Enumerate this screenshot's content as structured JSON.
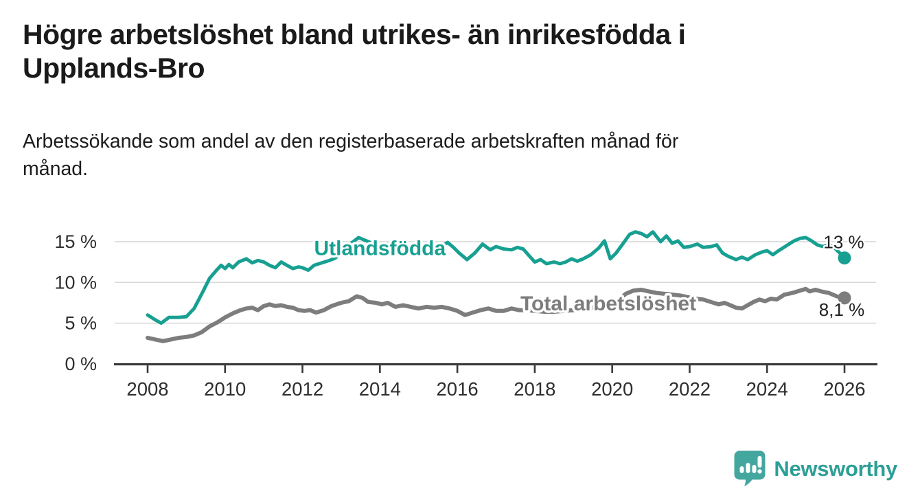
{
  "page": {
    "title": "Högre arbetslöshet bland utrikes- än inrikesfödda i Upplands-Bro",
    "subtitle": "Arbetssökande som andel av den registerbaserade arbetskraften månad för månad."
  },
  "branding": {
    "wordmark": "Newsworthy",
    "icon": "speech-bubble-bar-chart-icon",
    "icon_color": "#44a79f",
    "wordmark_color": "#2d9e96"
  },
  "chart_data": {
    "type": "line",
    "title": "",
    "xlabel": "",
    "ylabel": "",
    "x_unit": "decimal year (monthly samples)",
    "y_unit": "percent of registered labour force",
    "xlim": [
      2007.15,
      2026.85
    ],
    "ylim": [
      0,
      17
    ],
    "grid": "horizontal gridlines at 5, 10, 15",
    "legend_position": "inline labels on lines",
    "x_ticks": [
      2008,
      2010,
      2012,
      2014,
      2016,
      2018,
      2020,
      2022,
      2024,
      2026
    ],
    "x_tick_labels": [
      "2008",
      "2010",
      "2012",
      "2014",
      "2016",
      "2018",
      "2020",
      "2022",
      "2024",
      "2026"
    ],
    "y_ticks": [
      0,
      5,
      10,
      15
    ],
    "y_tick_labels": [
      "0 %",
      "5 %",
      "10 %",
      "15 %"
    ],
    "style": {
      "grid_color": "#d9d9d9",
      "axis_color": "#3a3a3a",
      "tick_text_color": "#2e2e2e",
      "end_label_color": "#222222",
      "background": "#ffffff"
    },
    "series": [
      {
        "id": "total-arbetsloshet",
        "name": "Total arbetslöshet",
        "color": "#7d7d7d",
        "width": 6,
        "end_label": "8,1 %",
        "end_value": 8.1,
        "label_pos": {
          "x": 2019.9,
          "y": 7.4
        },
        "points": [
          [
            2008.0,
            3.2
          ],
          [
            2008.2,
            3.0
          ],
          [
            2008.4,
            2.8
          ],
          [
            2008.6,
            3.0
          ],
          [
            2008.8,
            3.2
          ],
          [
            2009.0,
            3.3
          ],
          [
            2009.2,
            3.5
          ],
          [
            2009.4,
            3.9
          ],
          [
            2009.6,
            4.6
          ],
          [
            2009.8,
            5.1
          ],
          [
            2010.0,
            5.7
          ],
          [
            2010.2,
            6.2
          ],
          [
            2010.4,
            6.6
          ],
          [
            2010.55,
            6.8
          ],
          [
            2010.7,
            6.9
          ],
          [
            2010.85,
            6.6
          ],
          [
            2011.0,
            7.1
          ],
          [
            2011.15,
            7.3
          ],
          [
            2011.3,
            7.1
          ],
          [
            2011.45,
            7.2
          ],
          [
            2011.6,
            7.0
          ],
          [
            2011.75,
            6.9
          ],
          [
            2011.9,
            6.6
          ],
          [
            2012.05,
            6.5
          ],
          [
            2012.2,
            6.6
          ],
          [
            2012.35,
            6.3
          ],
          [
            2012.55,
            6.6
          ],
          [
            2012.75,
            7.1
          ],
          [
            2013.0,
            7.5
          ],
          [
            2013.2,
            7.7
          ],
          [
            2013.4,
            8.3
          ],
          [
            2013.55,
            8.1
          ],
          [
            2013.7,
            7.6
          ],
          [
            2013.9,
            7.5
          ],
          [
            2014.05,
            7.3
          ],
          [
            2014.2,
            7.5
          ],
          [
            2014.4,
            7.0
          ],
          [
            2014.6,
            7.2
          ],
          [
            2014.8,
            7.0
          ],
          [
            2015.0,
            6.8
          ],
          [
            2015.2,
            7.0
          ],
          [
            2015.4,
            6.9
          ],
          [
            2015.6,
            7.0
          ],
          [
            2015.8,
            6.8
          ],
          [
            2016.0,
            6.5
          ],
          [
            2016.2,
            6.0
          ],
          [
            2016.4,
            6.3
          ],
          [
            2016.6,
            6.6
          ],
          [
            2016.8,
            6.8
          ],
          [
            2017.0,
            6.5
          ],
          [
            2017.2,
            6.5
          ],
          [
            2017.4,
            6.8
          ],
          [
            2017.6,
            6.6
          ],
          [
            2017.8,
            6.6
          ],
          [
            2018.0,
            6.5
          ],
          [
            2018.25,
            6.4
          ],
          [
            2018.5,
            6.4
          ],
          [
            2018.75,
            6.5
          ],
          [
            2019.0,
            6.6
          ],
          [
            2019.25,
            6.7
          ],
          [
            2019.5,
            6.9
          ],
          [
            2019.75,
            7.1
          ],
          [
            2019.95,
            7.2
          ],
          [
            2020.15,
            7.8
          ],
          [
            2020.35,
            8.6
          ],
          [
            2020.55,
            9.0
          ],
          [
            2020.75,
            9.1
          ],
          [
            2020.95,
            8.9
          ],
          [
            2021.15,
            8.7
          ],
          [
            2021.35,
            8.6
          ],
          [
            2021.55,
            8.5
          ],
          [
            2021.75,
            8.4
          ],
          [
            2021.95,
            8.2
          ],
          [
            2022.15,
            8.0
          ],
          [
            2022.35,
            7.9
          ],
          [
            2022.55,
            7.6
          ],
          [
            2022.75,
            7.3
          ],
          [
            2022.9,
            7.5
          ],
          [
            2023.05,
            7.2
          ],
          [
            2023.2,
            6.9
          ],
          [
            2023.35,
            6.8
          ],
          [
            2023.5,
            7.2
          ],
          [
            2023.65,
            7.6
          ],
          [
            2023.8,
            7.9
          ],
          [
            2023.95,
            7.7
          ],
          [
            2024.1,
            8.0
          ],
          [
            2024.25,
            7.9
          ],
          [
            2024.45,
            8.5
          ],
          [
            2024.65,
            8.7
          ],
          [
            2024.85,
            9.0
          ],
          [
            2025.0,
            9.2
          ],
          [
            2025.1,
            8.9
          ],
          [
            2025.25,
            9.1
          ],
          [
            2025.4,
            8.9
          ],
          [
            2025.6,
            8.7
          ],
          [
            2025.8,
            8.3
          ],
          [
            2026.0,
            8.1
          ]
        ]
      },
      {
        "id": "utlandsfodda",
        "name": "Utlandsfödda",
        "color": "#17a092",
        "width": 5,
        "end_label": "13 %",
        "end_value": 13.0,
        "label_pos": {
          "x": 2014.0,
          "y": 14.2
        },
        "points": [
          [
            2008.0,
            6.0
          ],
          [
            2008.2,
            5.4
          ],
          [
            2008.35,
            5.0
          ],
          [
            2008.55,
            5.7
          ],
          [
            2008.8,
            5.7
          ],
          [
            2009.0,
            5.8
          ],
          [
            2009.2,
            6.8
          ],
          [
            2009.4,
            8.6
          ],
          [
            2009.6,
            10.5
          ],
          [
            2009.8,
            11.6
          ],
          [
            2009.9,
            12.1
          ],
          [
            2010.0,
            11.7
          ],
          [
            2010.1,
            12.2
          ],
          [
            2010.2,
            11.8
          ],
          [
            2010.35,
            12.5
          ],
          [
            2010.55,
            12.9
          ],
          [
            2010.7,
            12.4
          ],
          [
            2010.85,
            12.7
          ],
          [
            2011.0,
            12.5
          ],
          [
            2011.15,
            12.1
          ],
          [
            2011.3,
            11.8
          ],
          [
            2011.45,
            12.5
          ],
          [
            2011.6,
            12.1
          ],
          [
            2011.75,
            11.7
          ],
          [
            2011.9,
            11.9
          ],
          [
            2012.0,
            11.8
          ],
          [
            2012.15,
            11.5
          ],
          [
            2012.3,
            12.1
          ],
          [
            2012.5,
            12.4
          ],
          [
            2012.7,
            12.7
          ],
          [
            2012.85,
            13.0
          ],
          [
            2013.0,
            13.6
          ],
          [
            2013.2,
            14.6
          ],
          [
            2013.45,
            15.5
          ],
          [
            2013.6,
            15.2
          ],
          [
            2013.8,
            14.8
          ],
          [
            2014.0,
            14.6
          ],
          [
            2014.25,
            14.7
          ],
          [
            2014.5,
            14.4
          ],
          [
            2014.75,
            14.2
          ],
          [
            2015.0,
            14.0
          ],
          [
            2015.25,
            13.9
          ],
          [
            2015.5,
            14.1
          ],
          [
            2015.75,
            14.9
          ],
          [
            2015.9,
            14.3
          ],
          [
            2016.05,
            13.6
          ],
          [
            2016.25,
            12.8
          ],
          [
            2016.45,
            13.6
          ],
          [
            2016.65,
            14.7
          ],
          [
            2016.85,
            14.0
          ],
          [
            2017.0,
            14.4
          ],
          [
            2017.2,
            14.1
          ],
          [
            2017.4,
            14.0
          ],
          [
            2017.55,
            14.3
          ],
          [
            2017.7,
            14.1
          ],
          [
            2017.85,
            13.3
          ],
          [
            2018.0,
            12.5
          ],
          [
            2018.15,
            12.8
          ],
          [
            2018.3,
            12.3
          ],
          [
            2018.5,
            12.5
          ],
          [
            2018.65,
            12.3
          ],
          [
            2018.8,
            12.5
          ],
          [
            2018.95,
            12.9
          ],
          [
            2019.1,
            12.6
          ],
          [
            2019.25,
            12.9
          ],
          [
            2019.45,
            13.4
          ],
          [
            2019.65,
            14.2
          ],
          [
            2019.8,
            15.1
          ],
          [
            2019.95,
            12.9
          ],
          [
            2020.1,
            13.6
          ],
          [
            2020.3,
            14.9
          ],
          [
            2020.45,
            15.9
          ],
          [
            2020.6,
            16.2
          ],
          [
            2020.75,
            16.0
          ],
          [
            2020.9,
            15.6
          ],
          [
            2021.05,
            16.2
          ],
          [
            2021.25,
            15.0
          ],
          [
            2021.4,
            15.7
          ],
          [
            2021.55,
            14.8
          ],
          [
            2021.7,
            15.1
          ],
          [
            2021.85,
            14.3
          ],
          [
            2022.0,
            14.4
          ],
          [
            2022.2,
            14.7
          ],
          [
            2022.35,
            14.3
          ],
          [
            2022.55,
            14.4
          ],
          [
            2022.7,
            14.6
          ],
          [
            2022.85,
            13.6
          ],
          [
            2023.0,
            13.2
          ],
          [
            2023.2,
            12.8
          ],
          [
            2023.35,
            13.1
          ],
          [
            2023.5,
            12.8
          ],
          [
            2023.7,
            13.4
          ],
          [
            2023.85,
            13.7
          ],
          [
            2024.0,
            13.9
          ],
          [
            2024.15,
            13.4
          ],
          [
            2024.3,
            13.9
          ],
          [
            2024.5,
            14.5
          ],
          [
            2024.7,
            15.1
          ],
          [
            2024.85,
            15.4
          ],
          [
            2025.0,
            15.5
          ],
          [
            2025.15,
            15.1
          ],
          [
            2025.3,
            14.6
          ],
          [
            2025.45,
            14.4
          ],
          [
            2025.6,
            14.6
          ],
          [
            2025.75,
            14.2
          ],
          [
            2025.9,
            13.5
          ],
          [
            2026.0,
            13.0
          ]
        ]
      }
    ]
  }
}
